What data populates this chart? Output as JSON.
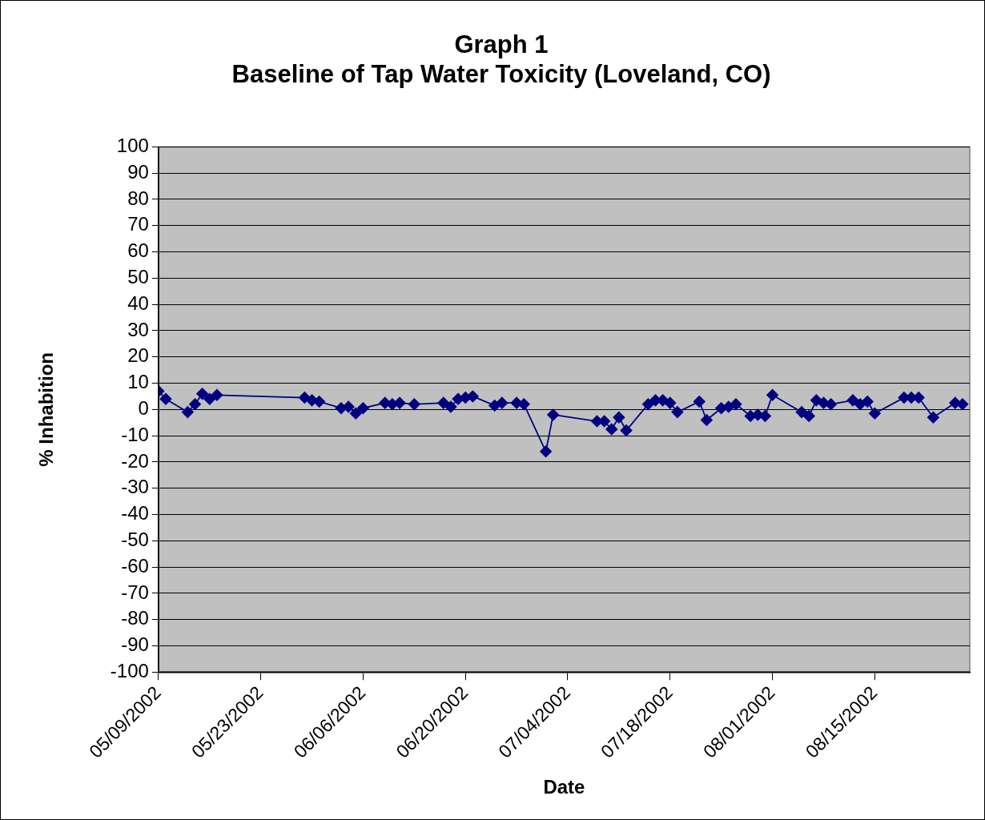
{
  "chart_data": {
    "type": "line",
    "title": "Graph 1\nBaseline of Tap Water Toxicity (Loveland, CO)",
    "xlabel": "Date",
    "ylabel": "% Inhabition",
    "x": [
      "2002-05-09",
      "2002-05-10",
      "2002-05-13",
      "2002-05-14",
      "2002-05-15",
      "2002-05-16",
      "2002-05-17",
      "2002-05-29",
      "2002-05-30",
      "2002-05-31",
      "2002-06-03",
      "2002-06-04",
      "2002-06-05",
      "2002-06-06",
      "2002-06-09",
      "2002-06-10",
      "2002-06-11",
      "2002-06-13",
      "2002-06-17",
      "2002-06-18",
      "2002-06-19",
      "2002-06-20",
      "2002-06-21",
      "2002-06-24",
      "2002-06-25",
      "2002-06-27",
      "2002-06-28",
      "2002-07-01",
      "2002-07-02",
      "2002-07-08",
      "2002-07-09",
      "2002-07-10",
      "2002-07-11",
      "2002-07-12",
      "2002-07-15",
      "2002-07-16",
      "2002-07-17",
      "2002-07-18",
      "2002-07-19",
      "2002-07-22",
      "2002-07-23",
      "2002-07-25",
      "2002-07-26",
      "2002-07-27",
      "2002-07-29",
      "2002-07-30",
      "2002-07-31",
      "2002-08-01",
      "2002-08-05",
      "2002-08-06",
      "2002-08-07",
      "2002-08-08",
      "2002-08-09",
      "2002-08-12",
      "2002-08-13",
      "2002-08-14",
      "2002-08-15",
      "2002-08-19",
      "2002-08-20",
      "2002-08-21",
      "2002-08-23",
      "2002-08-26",
      "2002-08-27"
    ],
    "series": [
      {
        "color": "#000080",
        "values": [
          7,
          4,
          -1,
          2,
          6,
          4,
          5.5,
          4.5,
          3.5,
          3,
          0.5,
          1,
          -1.5,
          0.5,
          2.5,
          2,
          2.5,
          2,
          2.5,
          1,
          4,
          4.5,
          5,
          1.5,
          2.5,
          2.5,
          2,
          -16,
          -2,
          -4.5,
          -4.5,
          -7.5,
          -3,
          -8,
          2,
          3.5,
          3.5,
          2.5,
          -1,
          3,
          -4,
          0.5,
          1,
          2,
          -2.5,
          -2,
          -2.5,
          5.5,
          -1,
          -2.5,
          3.5,
          2.5,
          2,
          3.5,
          2,
          3,
          -1.5,
          4.5,
          4.5,
          4.5,
          -3,
          2.5,
          2
        ]
      }
    ],
    "xlim": [
      "2002-05-09",
      "2002-08-28"
    ],
    "xticks": [
      {
        "value": "2002-05-09",
        "label": "05/09/2002"
      },
      {
        "value": "2002-05-23",
        "label": "05/23/2002"
      },
      {
        "value": "2002-06-06",
        "label": "06/06/2002"
      },
      {
        "value": "2002-06-20",
        "label": "06/20/2002"
      },
      {
        "value": "2002-07-04",
        "label": "07/04/2002"
      },
      {
        "value": "2002-07-18",
        "label": "07/18/2002"
      },
      {
        "value": "2002-08-01",
        "label": "08/01/2002"
      },
      {
        "value": "2002-08-15",
        "label": "08/15/2002"
      }
    ],
    "ylim": [
      -100,
      100
    ],
    "yticks": [
      -100,
      -90,
      -80,
      -70,
      -60,
      -50,
      -40,
      -30,
      -20,
      -10,
      0,
      10,
      20,
      30,
      40,
      50,
      60,
      70,
      80,
      90,
      100
    ],
    "grid": "y",
    "legend": false,
    "marker": "diamond",
    "line_style": "solid"
  }
}
